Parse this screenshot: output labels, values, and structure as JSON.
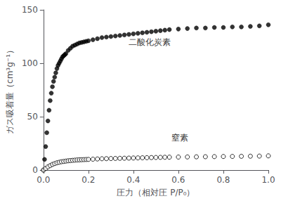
{
  "chart_data": {
    "type": "scatter",
    "background_color": "#ffffff",
    "xlabel": "圧力（相対圧 P/P₀）",
    "ylabel": "ガス吸着量（cm³g⁻¹）",
    "xlim": [
      0,
      1.0
    ],
    "ylim": [
      0,
      150
    ],
    "xticks": [
      {
        "value": 0,
        "label": "0.0"
      },
      0.2,
      0.4,
      0.6,
      0.8,
      {
        "value": 1.0,
        "label": "1.0"
      }
    ],
    "yticks": [
      0,
      50,
      100,
      150
    ],
    "grid": false,
    "annotations": [
      {
        "text": "二酸化炭素",
        "x": 0.38,
        "y": 120
      },
      {
        "text": "窒素",
        "x": 0.57,
        "y": 30
      }
    ],
    "series": [
      {
        "color": "#000000",
        "marker": "filled_circle",
        "x": [
          0.0,
          0.005,
          0.01,
          0.015,
          0.02,
          0.025,
          0.03,
          0.035,
          0.04,
          0.045,
          0.05,
          0.055,
          0.06,
          0.065,
          0.07,
          0.075,
          0.08,
          0.085,
          0.09,
          0.095,
          0.1,
          0.11,
          0.12,
          0.13,
          0.14,
          0.15,
          0.16,
          0.17,
          0.18,
          0.19,
          0.2,
          0.22,
          0.24,
          0.26,
          0.28,
          0.3,
          0.32,
          0.34,
          0.36,
          0.38,
          0.4,
          0.42,
          0.44,
          0.46,
          0.48,
          0.5,
          0.52,
          0.54,
          0.56,
          0.6,
          0.64,
          0.68,
          0.72,
          0.76,
          0.8,
          0.84,
          0.88,
          0.92,
          0.96,
          1.0
        ],
        "values": [
          0.0,
          10,
          22,
          35,
          46,
          56,
          65,
          72,
          78,
          83,
          87,
          91,
          95,
          98,
          100,
          102,
          104,
          106,
          107,
          108,
          109,
          112,
          114,
          116,
          117,
          118,
          119,
          119.5,
          120,
          120.5,
          121,
          122,
          123,
          124,
          124.5,
          125,
          125.5,
          126,
          126.5,
          127,
          127.5,
          128,
          128.5,
          129,
          129.5,
          130,
          130.5,
          131,
          131.5,
          132,
          132.5,
          133,
          133,
          133.5,
          133.5,
          134,
          134,
          134.5,
          135,
          136
        ]
      },
      {
        "color": "#000000",
        "marker": "open_circle",
        "x": [
          0.0,
          0.01,
          0.02,
          0.03,
          0.04,
          0.05,
          0.06,
          0.07,
          0.08,
          0.09,
          0.1,
          0.11,
          0.12,
          0.13,
          0.14,
          0.15,
          0.16,
          0.17,
          0.18,
          0.19,
          0.2,
          0.22,
          0.24,
          0.26,
          0.28,
          0.3,
          0.32,
          0.34,
          0.36,
          0.38,
          0.4,
          0.42,
          0.44,
          0.46,
          0.48,
          0.5,
          0.52,
          0.54,
          0.56,
          0.6,
          0.64,
          0.68,
          0.72,
          0.76,
          0.8,
          0.84,
          0.88,
          0.92,
          0.96,
          1.0
        ],
        "values": [
          0.0,
          1.5,
          3.0,
          4.2,
          5.3,
          6.1,
          6.8,
          7.3,
          7.8,
          8.1,
          8.4,
          8.7,
          8.9,
          9.1,
          9.3,
          9.5,
          9.6,
          9.7,
          9.8,
          9.9,
          10.0,
          10.2,
          10.4,
          10.6,
          10.7,
          10.8,
          10.9,
          11.0,
          11.1,
          11.2,
          11.3,
          11.4,
          11.5,
          11.6,
          11.7,
          11.8,
          11.9,
          12.0,
          12.1,
          12.2,
          12.3,
          12.4,
          12.5,
          12.6,
          12.7,
          12.8,
          12.9,
          13.0,
          13.1,
          13.3
        ]
      }
    ]
  }
}
